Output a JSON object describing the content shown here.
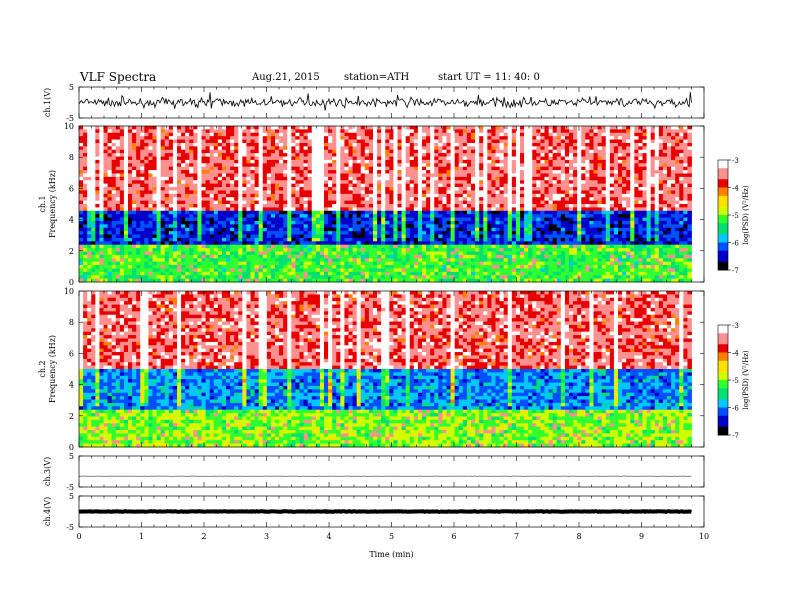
{
  "header": {
    "title": "VLF  Spectra",
    "date": "Aug.21, 2015",
    "station": "station=ATH",
    "start": "start  UT  =   11: 40: 0"
  },
  "chart_data": [
    {
      "type": "line",
      "ylabel": "ch.1(V)",
      "ylim": [
        -5,
        5
      ],
      "y_ticks": [
        "5",
        "-5"
      ],
      "description_values": {
        "baseline": 0,
        "amplitude": 2
      }
    },
    {
      "type": "heatmap",
      "ylabel": "ch.1\nFrequency  (kHz)",
      "ylim": [
        0,
        10
      ],
      "y_ticks": [
        "10",
        "8",
        "6",
        "4",
        "2",
        "0"
      ],
      "colorbar_label": "log(PSD) (V²/Hz)",
      "colorbar_ticks": [
        "-3",
        "-4",
        "-5",
        "-6",
        "-7"
      ],
      "colorbar_range": [
        -7,
        -3
      ],
      "bands": [
        {
          "from_khz": 4.5,
          "to_khz": 10,
          "level": -3.6
        },
        {
          "from_khz": 2.5,
          "to_khz": 4.5,
          "level": -6.4
        },
        {
          "from_khz": 0,
          "to_khz": 2.5,
          "level": -5.2
        }
      ]
    },
    {
      "type": "heatmap",
      "ylabel": "ch.2\nFrequency  (kHz)",
      "ylim": [
        0,
        10
      ],
      "y_ticks": [
        "10",
        "8",
        "6",
        "4",
        "2",
        "0"
      ],
      "colorbar_label": "log(PSD) (V²/Hz)",
      "colorbar_ticks": [
        "-3",
        "-4",
        "-5",
        "-6",
        "-7"
      ],
      "colorbar_range": [
        -7,
        -3
      ],
      "bands": [
        {
          "from_khz": 5,
          "to_khz": 10,
          "level": -3.6
        },
        {
          "from_khz": 2.5,
          "to_khz": 5,
          "level": -6.0
        },
        {
          "from_khz": 0,
          "to_khz": 2.5,
          "level": -5.0
        }
      ]
    },
    {
      "type": "line",
      "ylabel": "ch.3(V)",
      "ylim": [
        -5,
        5
      ],
      "y_ticks": [
        "5",
        "-5"
      ],
      "description_values": {
        "baseline": -1.5,
        "amplitude": 0.05
      }
    },
    {
      "type": "line",
      "ylabel": "ch.4(V)",
      "ylim": [
        -5,
        5
      ],
      "y_ticks": [
        "5",
        "-5"
      ],
      "description_values": {
        "baseline": 0,
        "amplitude": 0.15
      }
    }
  ],
  "x_axis": {
    "label": "Time  (min)",
    "xlim": [
      0,
      10
    ],
    "ticks": [
      "0",
      "1",
      "2",
      "3",
      "4",
      "5",
      "6",
      "7",
      "8",
      "9",
      "10"
    ],
    "data_end": 9.8
  },
  "colors": {
    "trace": "#000000",
    "cmap": [
      "#000000",
      "#0000c8",
      "#0050ff",
      "#00c8ff",
      "#00e070",
      "#30ff30",
      "#d0ff00",
      "#ffe000",
      "#ff8000",
      "#e80000",
      "#ff9090",
      "#ffffff"
    ]
  }
}
